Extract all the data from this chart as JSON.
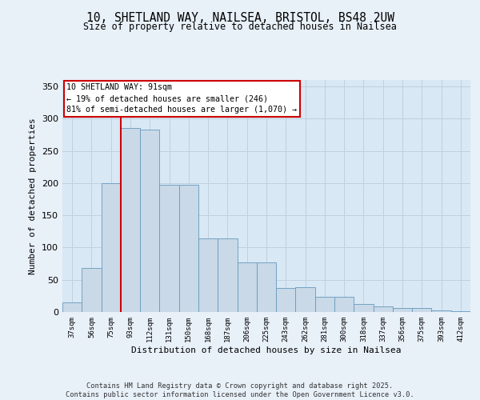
{
  "title1": "10, SHETLAND WAY, NAILSEA, BRISTOL, BS48 2UW",
  "title2": "Size of property relative to detached houses in Nailsea",
  "xlabel": "Distribution of detached houses by size in Nailsea",
  "ylabel": "Number of detached properties",
  "categories": [
    "37sqm",
    "56sqm",
    "75sqm",
    "93sqm",
    "112sqm",
    "131sqm",
    "150sqm",
    "168sqm",
    "187sqm",
    "206sqm",
    "225sqm",
    "243sqm",
    "262sqm",
    "281sqm",
    "300sqm",
    "318sqm",
    "337sqm",
    "356sqm",
    "375sqm",
    "393sqm",
    "412sqm"
  ],
  "bar_heights": [
    15,
    68,
    200,
    285,
    283,
    197,
    197,
    114,
    114,
    77,
    77,
    37,
    38,
    24,
    24,
    12,
    9,
    6,
    6,
    3,
    1
  ],
  "bar_color": "#c9d9e8",
  "bar_edge_color": "#6699bb",
  "grid_color": "#c0d0e0",
  "background_color": "#d8e8f4",
  "fig_background_color": "#e8f0f8",
  "vline_color": "#cc0000",
  "vline_x": 2.5,
  "annotation_text": "10 SHETLAND WAY: 91sqm\n← 19% of detached houses are smaller (246)\n81% of semi-detached houses are larger (1,070) →",
  "annotation_box_color": "#ffffff",
  "annotation_edge_color": "#cc0000",
  "footer": "Contains HM Land Registry data © Crown copyright and database right 2025.\nContains public sector information licensed under the Open Government Licence v3.0.",
  "ylim": [
    0,
    360
  ],
  "yticks": [
    0,
    50,
    100,
    150,
    200,
    250,
    300,
    350
  ]
}
